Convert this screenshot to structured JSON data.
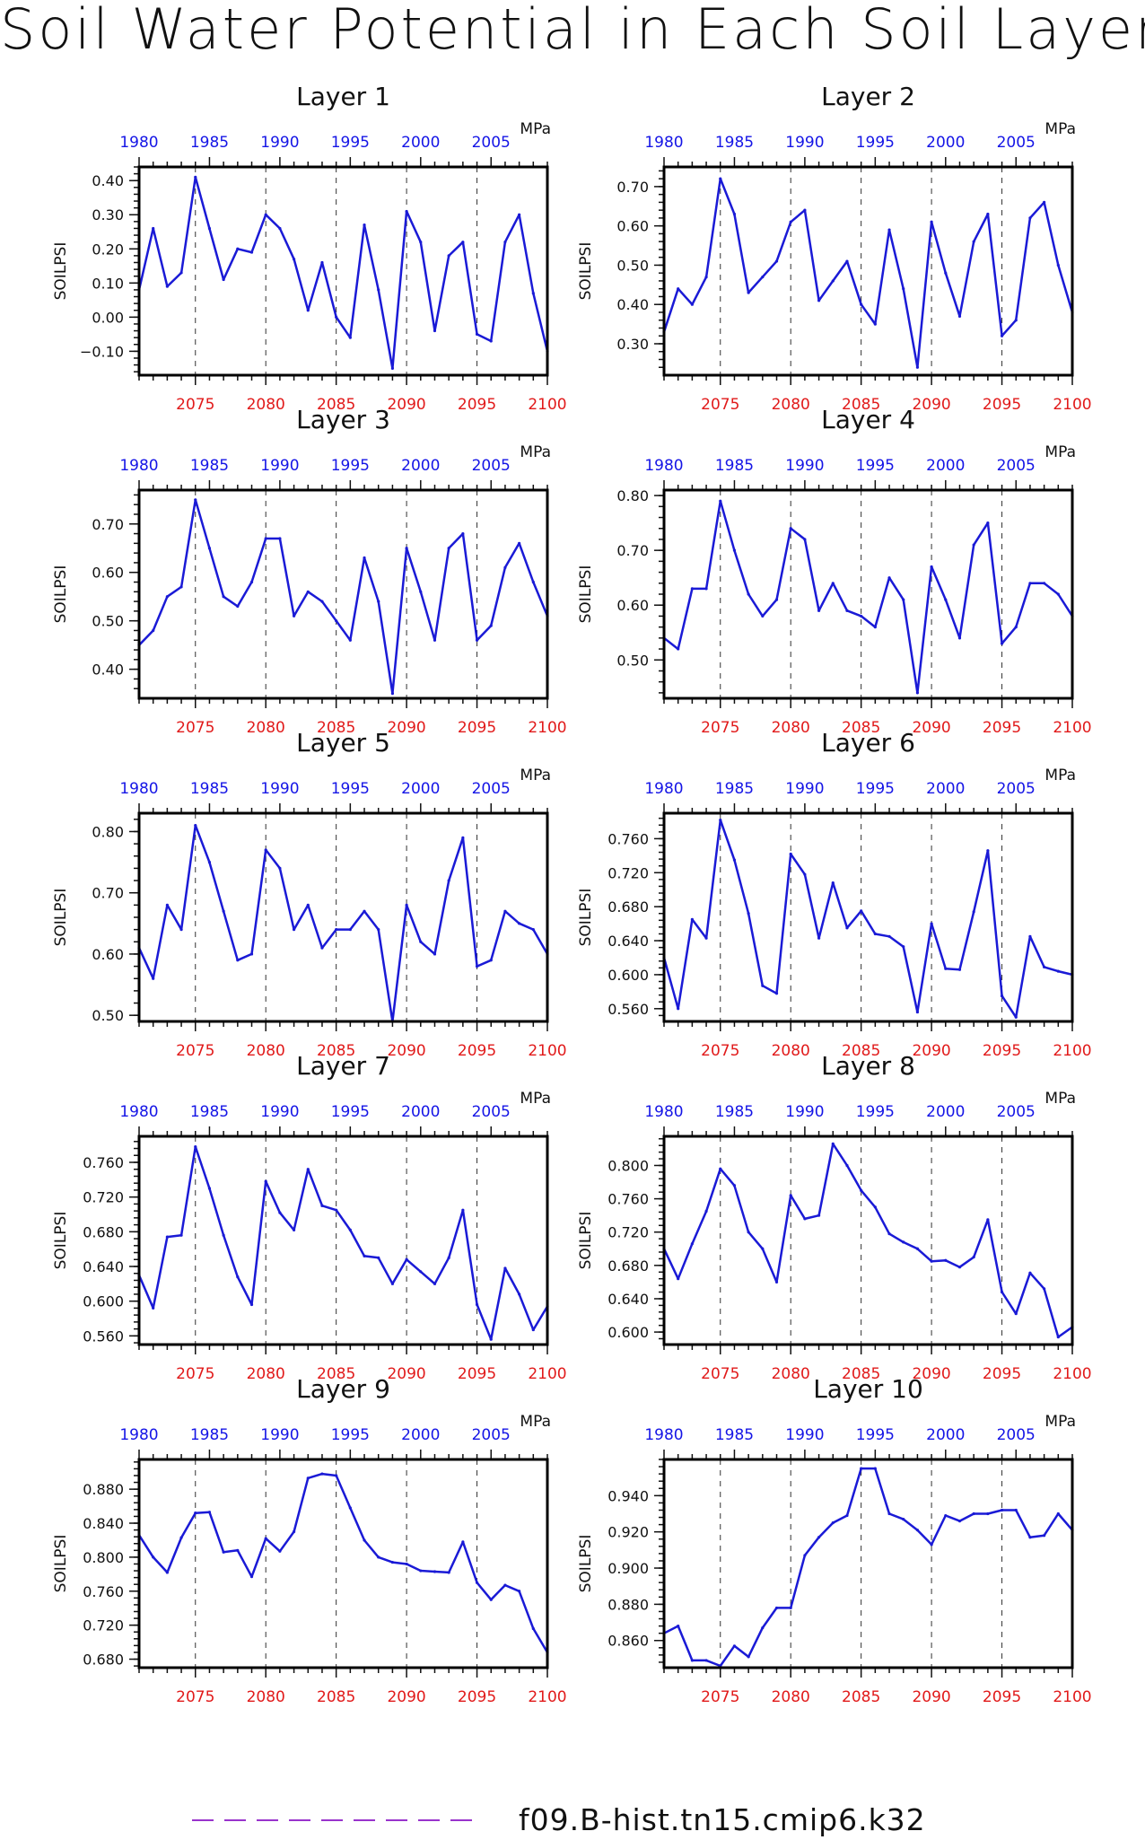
{
  "title": "Soil Water Potential in Each Soil Layer",
  "legend": {
    "label": "f09.B-hist.tn15.cmip6.k32",
    "color": "#9933cc"
  },
  "colors": {
    "line": "#1a1ad6",
    "top_ticks": "#1515e6",
    "bottom_ticks": "#e11a1a"
  },
  "chart_data": [
    {
      "type": "line",
      "title": "Layer 1",
      "ylabel": "SOILPSI",
      "unit": "MPa",
      "x_bottom_ticks": [
        2075,
        2080,
        2085,
        2090,
        2095,
        2100
      ],
      "x_top_ticks": [
        1980,
        1985,
        1990,
        1995,
        2000,
        2005
      ],
      "xlim": [
        2071,
        2100
      ],
      "ylim": [
        -0.17,
        0.44
      ],
      "y_ticks": [
        "0.40",
        "0.30",
        "0.20",
        "0.10",
        "0.00",
        "−0.10"
      ],
      "y_tick_values": [
        0.4,
        0.3,
        0.2,
        0.1,
        0.0,
        -0.1
      ],
      "grid_x": [
        2075,
        2080,
        2085,
        2090,
        2095
      ],
      "x": [
        2071,
        2072,
        2073,
        2074,
        2075,
        2076,
        2077,
        2078,
        2079,
        2080,
        2081,
        2082,
        2083,
        2084,
        2085,
        2086,
        2087,
        2088,
        2089,
        2090,
        2091,
        2092,
        2093,
        2094,
        2095,
        2096,
        2097,
        2098,
        2099,
        2100
      ],
      "values": [
        0.08,
        0.26,
        0.09,
        0.13,
        0.41,
        0.26,
        0.11,
        0.2,
        0.19,
        0.3,
        0.26,
        0.17,
        0.02,
        0.16,
        0.0,
        -0.06,
        0.27,
        0.08,
        -0.15,
        0.31,
        0.22,
        -0.04,
        0.18,
        0.22,
        -0.05,
        -0.07,
        0.22,
        0.3,
        0.07,
        -0.1
      ]
    },
    {
      "type": "line",
      "title": "Layer 2",
      "ylabel": "SOILPSI",
      "unit": "MPa",
      "x_bottom_ticks": [
        2075,
        2080,
        2085,
        2090,
        2095,
        2100
      ],
      "x_top_ticks": [
        1980,
        1985,
        1990,
        1995,
        2000,
        2005
      ],
      "xlim": [
        2071,
        2100
      ],
      "ylim": [
        0.22,
        0.75
      ],
      "y_ticks": [
        "0.70",
        "0.60",
        "0.50",
        "0.40",
        "0.30"
      ],
      "y_tick_values": [
        0.7,
        0.6,
        0.5,
        0.4,
        0.3
      ],
      "grid_x": [
        2075,
        2080,
        2085,
        2090,
        2095
      ],
      "x": [
        2071,
        2072,
        2073,
        2074,
        2075,
        2076,
        2077,
        2078,
        2079,
        2080,
        2081,
        2082,
        2083,
        2084,
        2085,
        2086,
        2087,
        2088,
        2089,
        2090,
        2091,
        2092,
        2093,
        2094,
        2095,
        2096,
        2097,
        2098,
        2099,
        2100
      ],
      "values": [
        0.33,
        0.44,
        0.4,
        0.47,
        0.72,
        0.63,
        0.43,
        0.47,
        0.51,
        0.61,
        0.64,
        0.41,
        0.46,
        0.51,
        0.4,
        0.35,
        0.59,
        0.44,
        0.24,
        0.61,
        0.48,
        0.37,
        0.56,
        0.63,
        0.32,
        0.36,
        0.62,
        0.66,
        0.5,
        0.38
      ]
    },
    {
      "type": "line",
      "title": "Layer 3",
      "ylabel": "SOILPSI",
      "unit": "MPa",
      "x_bottom_ticks": [
        2075,
        2080,
        2085,
        2090,
        2095,
        2100
      ],
      "x_top_ticks": [
        1980,
        1985,
        1990,
        1995,
        2000,
        2005
      ],
      "xlim": [
        2071,
        2100
      ],
      "ylim": [
        0.34,
        0.77
      ],
      "y_ticks": [
        "0.70",
        "0.60",
        "0.50",
        "0.40"
      ],
      "y_tick_values": [
        0.7,
        0.6,
        0.5,
        0.4
      ],
      "grid_x": [
        2075,
        2080,
        2085,
        2090,
        2095
      ],
      "x": [
        2071,
        2072,
        2073,
        2074,
        2075,
        2076,
        2077,
        2078,
        2079,
        2080,
        2081,
        2082,
        2083,
        2084,
        2085,
        2086,
        2087,
        2088,
        2089,
        2090,
        2091,
        2092,
        2093,
        2094,
        2095,
        2096,
        2097,
        2098,
        2099,
        2100
      ],
      "values": [
        0.45,
        0.48,
        0.55,
        0.57,
        0.75,
        0.65,
        0.55,
        0.53,
        0.58,
        0.67,
        0.67,
        0.51,
        0.56,
        0.54,
        0.5,
        0.46,
        0.63,
        0.54,
        0.35,
        0.65,
        0.56,
        0.46,
        0.65,
        0.68,
        0.46,
        0.49,
        0.61,
        0.66,
        0.58,
        0.51
      ]
    },
    {
      "type": "line",
      "title": "Layer 4",
      "ylabel": "SOILPSI",
      "unit": "MPa",
      "x_bottom_ticks": [
        2075,
        2080,
        2085,
        2090,
        2095,
        2100
      ],
      "x_top_ticks": [
        1980,
        1985,
        1990,
        1995,
        2000,
        2005
      ],
      "xlim": [
        2071,
        2100
      ],
      "ylim": [
        0.43,
        0.81
      ],
      "y_ticks": [
        "0.80",
        "0.70",
        "0.60",
        "0.50"
      ],
      "y_tick_values": [
        0.8,
        0.7,
        0.6,
        0.5
      ],
      "grid_x": [
        2075,
        2080,
        2085,
        2090,
        2095
      ],
      "x": [
        2071,
        2072,
        2073,
        2074,
        2075,
        2076,
        2077,
        2078,
        2079,
        2080,
        2081,
        2082,
        2083,
        2084,
        2085,
        2086,
        2087,
        2088,
        2089,
        2090,
        2091,
        2092,
        2093,
        2094,
        2095,
        2096,
        2097,
        2098,
        2099,
        2100
      ],
      "values": [
        0.54,
        0.52,
        0.63,
        0.63,
        0.79,
        0.7,
        0.62,
        0.58,
        0.61,
        0.74,
        0.72,
        0.59,
        0.64,
        0.59,
        0.58,
        0.56,
        0.65,
        0.61,
        0.44,
        0.67,
        0.61,
        0.54,
        0.71,
        0.75,
        0.53,
        0.56,
        0.64,
        0.64,
        0.62,
        0.58
      ]
    },
    {
      "type": "line",
      "title": "Layer 5",
      "ylabel": "SOILPSI",
      "unit": "MPa",
      "x_bottom_ticks": [
        2075,
        2080,
        2085,
        2090,
        2095,
        2100
      ],
      "x_top_ticks": [
        1980,
        1985,
        1990,
        1995,
        2000,
        2005
      ],
      "xlim": [
        2071,
        2100
      ],
      "ylim": [
        0.49,
        0.83
      ],
      "y_ticks": [
        "0.80",
        "0.70",
        "0.60",
        "0.50"
      ],
      "y_tick_values": [
        0.8,
        0.7,
        0.6,
        0.5
      ],
      "grid_x": [
        2075,
        2080,
        2085,
        2090,
        2095
      ],
      "x": [
        2071,
        2072,
        2073,
        2074,
        2075,
        2076,
        2077,
        2078,
        2079,
        2080,
        2081,
        2082,
        2083,
        2084,
        2085,
        2086,
        2087,
        2088,
        2089,
        2090,
        2091,
        2092,
        2093,
        2094,
        2095,
        2096,
        2097,
        2098,
        2099,
        2100
      ],
      "values": [
        0.61,
        0.56,
        0.68,
        0.64,
        0.81,
        0.75,
        0.67,
        0.59,
        0.6,
        0.77,
        0.74,
        0.64,
        0.68,
        0.61,
        0.64,
        0.64,
        0.67,
        0.64,
        0.49,
        0.68,
        0.62,
        0.6,
        0.72,
        0.79,
        0.58,
        0.59,
        0.67,
        0.65,
        0.64,
        0.6
      ]
    },
    {
      "type": "line",
      "title": "Layer 6",
      "ylabel": "SOILPSI",
      "unit": "MPa",
      "x_bottom_ticks": [
        2075,
        2080,
        2085,
        2090,
        2095,
        2100
      ],
      "x_top_ticks": [
        1980,
        1985,
        1990,
        1995,
        2000,
        2005
      ],
      "xlim": [
        2071,
        2100
      ],
      "ylim": [
        0.545,
        0.79
      ],
      "y_ticks": [
        "0.760",
        "0.720",
        "0.680",
        "0.640",
        "0.600",
        "0.560"
      ],
      "y_tick_values": [
        0.76,
        0.72,
        0.68,
        0.64,
        0.6,
        0.56
      ],
      "grid_x": [
        2075,
        2080,
        2085,
        2090,
        2095
      ],
      "x": [
        2071,
        2072,
        2073,
        2074,
        2075,
        2076,
        2077,
        2078,
        2079,
        2080,
        2081,
        2082,
        2083,
        2084,
        2085,
        2086,
        2087,
        2088,
        2089,
        2090,
        2091,
        2092,
        2093,
        2094,
        2095,
        2096,
        2097,
        2098,
        2099,
        2100
      ],
      "values": [
        0.62,
        0.56,
        0.665,
        0.643,
        0.782,
        0.735,
        0.672,
        0.587,
        0.578,
        0.742,
        0.718,
        0.643,
        0.708,
        0.655,
        0.675,
        0.648,
        0.645,
        0.633,
        0.556,
        0.66,
        0.607,
        0.606,
        0.674,
        0.746,
        0.575,
        0.55,
        0.645,
        0.609,
        0.604,
        0.6
      ]
    },
    {
      "type": "line",
      "title": "Layer 7",
      "ylabel": "SOILPSI",
      "unit": "MPa",
      "x_bottom_ticks": [
        2075,
        2080,
        2085,
        2090,
        2095,
        2100
      ],
      "x_top_ticks": [
        1980,
        1985,
        1990,
        1995,
        2000,
        2005
      ],
      "xlim": [
        2071,
        2100
      ],
      "ylim": [
        0.55,
        0.79
      ],
      "y_ticks": [
        "0.760",
        "0.720",
        "0.680",
        "0.640",
        "0.600",
        "0.560"
      ],
      "y_tick_values": [
        0.76,
        0.72,
        0.68,
        0.64,
        0.6,
        0.56
      ],
      "grid_x": [
        2075,
        2080,
        2085,
        2090,
        2095
      ],
      "x": [
        2071,
        2072,
        2073,
        2074,
        2075,
        2076,
        2077,
        2078,
        2079,
        2080,
        2081,
        2082,
        2083,
        2084,
        2085,
        2086,
        2087,
        2088,
        2089,
        2090,
        2091,
        2092,
        2093,
        2094,
        2095,
        2096,
        2097,
        2098,
        2099,
        2100
      ],
      "values": [
        0.63,
        0.592,
        0.674,
        0.676,
        0.778,
        0.73,
        0.676,
        0.628,
        0.596,
        0.738,
        0.702,
        0.682,
        0.752,
        0.71,
        0.705,
        0.682,
        0.652,
        0.65,
        0.62,
        0.648,
        0.634,
        0.62,
        0.65,
        0.705,
        0.596,
        0.556,
        0.638,
        0.608,
        0.567,
        0.594
      ]
    },
    {
      "type": "line",
      "title": "Layer 8",
      "ylabel": "SOILPSI",
      "unit": "MPa",
      "x_bottom_ticks": [
        2075,
        2080,
        2085,
        2090,
        2095,
        2100
      ],
      "x_top_ticks": [
        1980,
        1985,
        1990,
        1995,
        2000,
        2005
      ],
      "xlim": [
        2071,
        2100
      ],
      "ylim": [
        0.585,
        0.835
      ],
      "y_ticks": [
        "0.800",
        "0.760",
        "0.720",
        "0.680",
        "0.640",
        "0.600"
      ],
      "y_tick_values": [
        0.8,
        0.76,
        0.72,
        0.68,
        0.64,
        0.6
      ],
      "grid_x": [
        2075,
        2080,
        2085,
        2090,
        2095
      ],
      "x": [
        2071,
        2072,
        2073,
        2074,
        2075,
        2076,
        2077,
        2078,
        2079,
        2080,
        2081,
        2082,
        2083,
        2084,
        2085,
        2086,
        2087,
        2088,
        2089,
        2090,
        2091,
        2092,
        2093,
        2094,
        2095,
        2096,
        2097,
        2098,
        2099,
        2100
      ],
      "values": [
        0.7,
        0.664,
        0.706,
        0.745,
        0.796,
        0.776,
        0.72,
        0.7,
        0.66,
        0.764,
        0.736,
        0.74,
        0.826,
        0.8,
        0.77,
        0.75,
        0.718,
        0.708,
        0.7,
        0.685,
        0.686,
        0.678,
        0.69,
        0.735,
        0.648,
        0.622,
        0.671,
        0.652,
        0.594,
        0.606
      ]
    },
    {
      "type": "line",
      "title": "Layer 9",
      "ylabel": "SOILPSI",
      "unit": "MPa",
      "x_bottom_ticks": [
        2075,
        2080,
        2085,
        2090,
        2095,
        2100
      ],
      "x_top_ticks": [
        1980,
        1985,
        1990,
        1995,
        2000,
        2005
      ],
      "xlim": [
        2071,
        2100
      ],
      "ylim": [
        0.67,
        0.915
      ],
      "y_ticks": [
        "0.880",
        "0.840",
        "0.800",
        "0.760",
        "0.720",
        "0.680"
      ],
      "y_tick_values": [
        0.88,
        0.84,
        0.8,
        0.76,
        0.72,
        0.68
      ],
      "grid_x": [
        2075,
        2080,
        2085,
        2090,
        2095
      ],
      "x": [
        2071,
        2072,
        2073,
        2074,
        2075,
        2076,
        2077,
        2078,
        2079,
        2080,
        2081,
        2082,
        2083,
        2084,
        2085,
        2086,
        2087,
        2088,
        2089,
        2090,
        2091,
        2092,
        2093,
        2094,
        2095,
        2096,
        2097,
        2098,
        2099,
        2100
      ],
      "values": [
        0.826,
        0.8,
        0.782,
        0.823,
        0.852,
        0.853,
        0.806,
        0.808,
        0.777,
        0.822,
        0.807,
        0.83,
        0.893,
        0.898,
        0.896,
        0.858,
        0.82,
        0.8,
        0.794,
        0.792,
        0.784,
        0.783,
        0.782,
        0.818,
        0.77,
        0.75,
        0.767,
        0.76,
        0.716,
        0.688
      ]
    },
    {
      "type": "line",
      "title": "Layer 10",
      "ylabel": "SOILPSI",
      "unit": "MPa",
      "x_bottom_ticks": [
        2075,
        2080,
        2085,
        2090,
        2095,
        2100
      ],
      "x_top_ticks": [
        1980,
        1985,
        1990,
        1995,
        2000,
        2005
      ],
      "xlim": [
        2071,
        2100
      ],
      "ylim": [
        0.845,
        0.96
      ],
      "y_ticks": [
        "0.940",
        "0.920",
        "0.900",
        "0.880",
        "0.860"
      ],
      "y_tick_values": [
        0.94,
        0.92,
        0.9,
        0.88,
        0.86
      ],
      "grid_x": [
        2075,
        2080,
        2085,
        2090,
        2095
      ],
      "x": [
        2071,
        2072,
        2073,
        2074,
        2075,
        2076,
        2077,
        2078,
        2079,
        2080,
        2081,
        2082,
        2083,
        2084,
        2085,
        2086,
        2087,
        2088,
        2089,
        2090,
        2091,
        2092,
        2093,
        2094,
        2095,
        2096,
        2097,
        2098,
        2099,
        2100
      ],
      "values": [
        0.864,
        0.868,
        0.849,
        0.849,
        0.846,
        0.857,
        0.851,
        0.867,
        0.878,
        0.878,
        0.907,
        0.917,
        0.925,
        0.929,
        0.955,
        0.955,
        0.93,
        0.927,
        0.921,
        0.913,
        0.929,
        0.926,
        0.93,
        0.93,
        0.932,
        0.932,
        0.917,
        0.918,
        0.93,
        0.921
      ]
    }
  ]
}
